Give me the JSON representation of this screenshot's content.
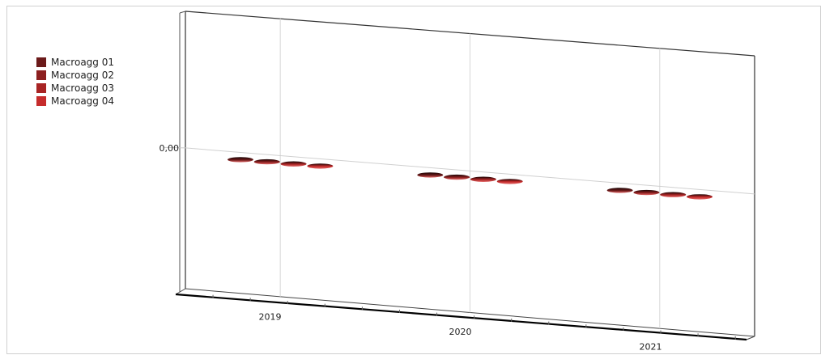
{
  "chart_data": {
    "type": "bar",
    "categories": [
      "2019",
      "2020",
      "2021"
    ],
    "series": [
      {
        "name": "Macroagg 01",
        "values": [
          0,
          0,
          0
        ],
        "color": "#6b1a1a"
      },
      {
        "name": "Macroagg 02",
        "values": [
          0,
          0,
          0
        ],
        "color": "#8c1f1f"
      },
      {
        "name": "Macroagg 03",
        "values": [
          0,
          0,
          0
        ],
        "color": "#a82424"
      },
      {
        "name": "Macroagg 04",
        "values": [
          0,
          0,
          0
        ],
        "color": "#c62c2c"
      }
    ],
    "y_tick_labels": [
      "0,00"
    ],
    "grid": true,
    "legend_position": "top-left",
    "projection": "3d"
  }
}
